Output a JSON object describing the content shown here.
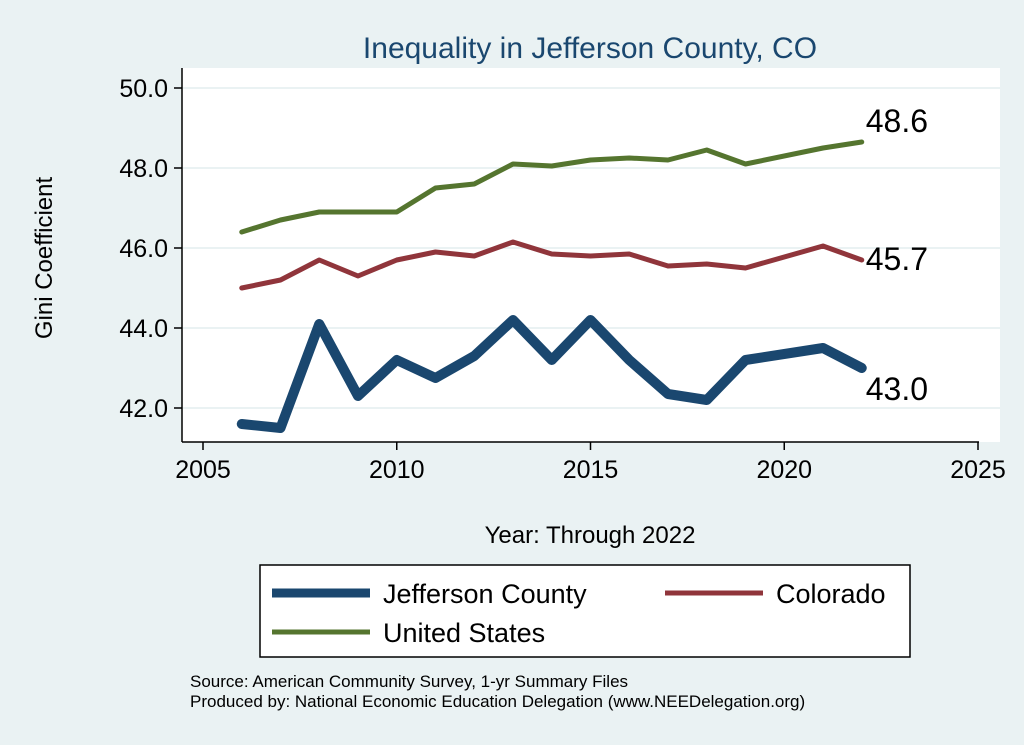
{
  "chart_data": {
    "type": "line",
    "title": "Inequality in Jefferson County, CO",
    "xlabel": "Year: Through 2022",
    "ylabel": "Gini Coefficient",
    "xlim": [
      2005,
      2025
    ],
    "ylim": [
      41.2,
      50.4
    ],
    "xticks": [
      2005,
      2010,
      2015,
      2020,
      2025
    ],
    "yticks": [
      "42.0",
      "44.0",
      "46.0",
      "48.0",
      "50.0"
    ],
    "grid": true,
    "legend_position": "bottom",
    "series": [
      {
        "name": "Jefferson County",
        "color": "#1a476f",
        "x": [
          2006,
          2007,
          2008,
          2009,
          2010,
          2011,
          2012,
          2013,
          2014,
          2015,
          2016,
          2017,
          2018,
          2019,
          2021,
          2022
        ],
        "values": [
          41.6,
          41.5,
          44.1,
          42.3,
          43.2,
          42.75,
          43.3,
          44.2,
          43.2,
          44.2,
          43.2,
          42.35,
          42.2,
          43.2,
          43.5,
          43.0
        ],
        "end_label": "43.0"
      },
      {
        "name": "Colorado",
        "color": "#90353b",
        "x": [
          2006,
          2007,
          2008,
          2009,
          2010,
          2011,
          2012,
          2013,
          2014,
          2015,
          2016,
          2017,
          2018,
          2019,
          2021,
          2022
        ],
        "values": [
          45.0,
          45.2,
          45.7,
          45.3,
          45.7,
          45.9,
          45.8,
          46.15,
          45.85,
          45.8,
          45.85,
          45.55,
          45.6,
          45.5,
          46.05,
          45.7
        ],
        "end_label": "45.7"
      },
      {
        "name": "United States",
        "color": "#55752f",
        "x": [
          2006,
          2007,
          2008,
          2009,
          2010,
          2011,
          2012,
          2013,
          2014,
          2015,
          2016,
          2017,
          2018,
          2019,
          2021,
          2022
        ],
        "values": [
          46.4,
          46.7,
          46.9,
          46.9,
          46.9,
          47.5,
          47.6,
          48.1,
          48.05,
          48.2,
          48.25,
          48.2,
          48.45,
          48.1,
          48.5,
          48.65
        ],
        "end_label": "48.6"
      }
    ],
    "notes": [
      "Source: American Community Survey, 1-yr Summary Files",
      "Produced by: National Economic Education Delegation (www.NEEDelegation.org)"
    ]
  }
}
